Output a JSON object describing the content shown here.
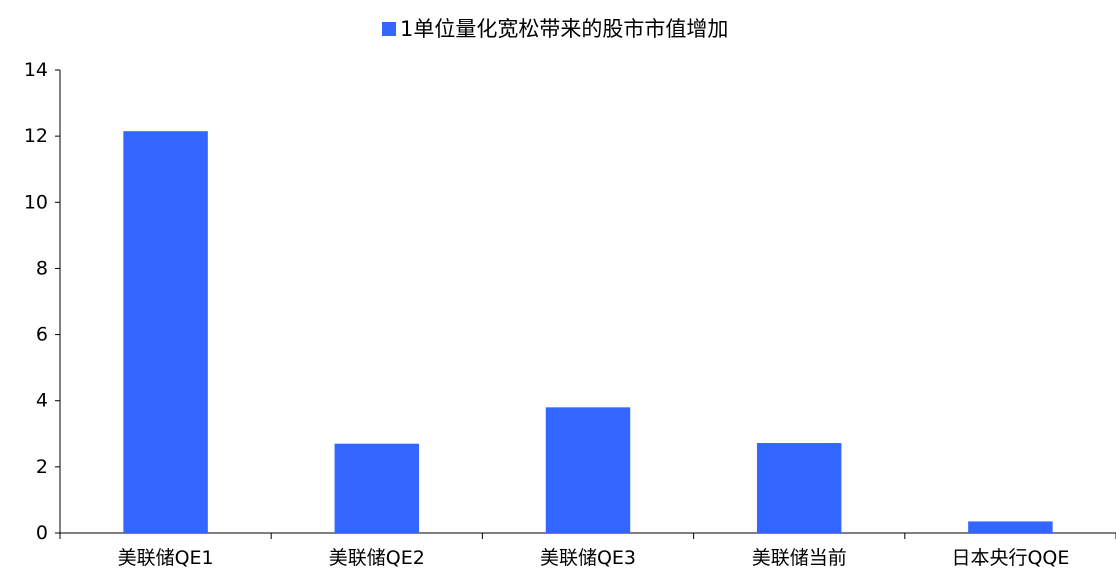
{
  "chart_data": {
    "type": "bar",
    "categories": [
      "美联储QE1",
      "美联储QE2",
      "美联储QE3",
      "美联储当前",
      "日本央行QQE"
    ],
    "series": [
      {
        "name": "1单位量化宽松带来的股市市值增加",
        "values": [
          12.15,
          2.7,
          3.8,
          2.72,
          0.35
        ],
        "color": "#3366FF"
      }
    ],
    "xlabel": "",
    "ylabel": "",
    "ylim": [
      0,
      14
    ],
    "yticks": [
      0,
      2,
      4,
      6,
      8,
      10,
      12,
      14
    ],
    "grid": false,
    "legend": "top-center"
  }
}
